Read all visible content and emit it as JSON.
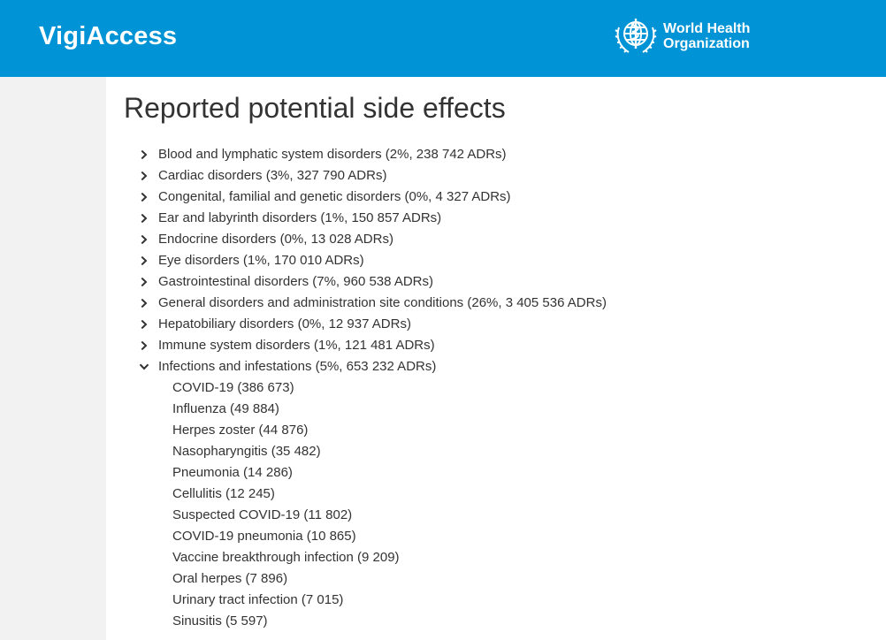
{
  "header": {
    "brand": "VigiAccess",
    "who_line1": "World Health",
    "who_line2": "Organization",
    "background_color": "#0093d5"
  },
  "page": {
    "title": "Reported potential side effects"
  },
  "categories": [
    {
      "label": "Blood and lymphatic system disorders (2%,  238 742 ADRs)",
      "expanded": false
    },
    {
      "label": "Cardiac disorders (3%,  327 790 ADRs)",
      "expanded": false
    },
    {
      "label": "Congenital, familial and genetic disorders (0%,  4 327 ADRs)",
      "expanded": false
    },
    {
      "label": "Ear and labyrinth disorders (1%,  150 857 ADRs)",
      "expanded": false
    },
    {
      "label": "Endocrine disorders (0%,  13 028 ADRs)",
      "expanded": false
    },
    {
      "label": "Eye disorders (1%,  170 010 ADRs)",
      "expanded": false
    },
    {
      "label": "Gastrointestinal disorders (7%,  960 538 ADRs)",
      "expanded": false
    },
    {
      "label": "General disorders and administration site conditions (26%,  3 405 536 ADRs)",
      "expanded": false
    },
    {
      "label": "Hepatobiliary disorders (0%,  12 937 ADRs)",
      "expanded": false
    },
    {
      "label": "Immune system disorders (1%,  121 481 ADRs)",
      "expanded": false
    },
    {
      "label": "Infections and infestations (5%,  653 232 ADRs)",
      "expanded": true
    }
  ],
  "subitems": [
    "COVID-19 (386 673)",
    "Influenza (49 884)",
    "Herpes zoster (44 876)",
    "Nasopharyngitis (35 482)",
    "Pneumonia (14 286)",
    "Cellulitis (12 245)",
    "Suspected COVID-19 (11 802)",
    "COVID-19 pneumonia (10 865)",
    "Vaccine breakthrough infection (9 209)",
    "Oral herpes (7 896)",
    "Urinary tract infection (7 015)",
    "Sinusitis (5 597)"
  ],
  "icons": {
    "collapsed": "chevron-right-icon",
    "expanded": "chevron-down-icon",
    "logo": "who-emblem-icon"
  }
}
